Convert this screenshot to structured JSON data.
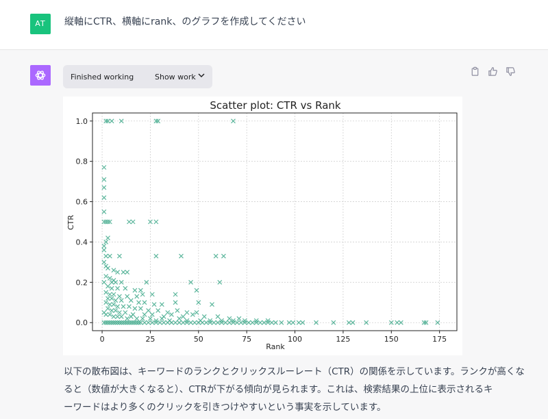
{
  "user": {
    "avatar_initials": "AT",
    "message": "縦軸にCTR、横軸にrank、のグラフを作成してください"
  },
  "assistant": {
    "avatar_icon": "openai-logo-icon",
    "status_label": "Finished working",
    "show_work_label": "Show work",
    "actions": [
      "copy-icon",
      "thumbs-up-icon",
      "thumbs-down-icon"
    ],
    "paragraph_lines": [
      "以下の散布図は、キーワードのランクとクリックスルーレート（CTR）の関係を示しています。ランクが高くな",
      "ると（数値が大きくなると）、CTRが下がる傾向が見られます。これは、検索結果の上位に表示されるキ",
      "ーワードはより多くのクリックを引きつけやすいという事実を示しています。"
    ]
  },
  "colors": {
    "user_avatar": "#19c37d",
    "bot_avatar": "#ab68ff",
    "marker": "#3fa98b"
  },
  "chart_data": {
    "type": "scatter",
    "title": "Scatter plot: CTR vs Rank",
    "xlabel": "Rank",
    "ylabel": "CTR",
    "xlim": [
      -5,
      184
    ],
    "ylim": [
      -0.04,
      1.04
    ],
    "xticks": [
      0,
      25,
      50,
      75,
      100,
      125,
      150,
      175
    ],
    "yticks": [
      0.0,
      0.2,
      0.4,
      0.6,
      0.8,
      1.0
    ],
    "grid": true,
    "marker": "x",
    "points": [
      [
        2,
        1.0
      ],
      [
        3,
        1.0
      ],
      [
        5,
        1.0
      ],
      [
        10,
        1.0
      ],
      [
        28,
        1.0
      ],
      [
        29,
        1.0
      ],
      [
        68,
        1.0
      ],
      [
        1,
        0.77
      ],
      [
        1,
        0.71
      ],
      [
        1,
        0.67
      ],
      [
        1,
        0.62
      ],
      [
        1,
        0.55
      ],
      [
        1,
        0.5
      ],
      [
        2,
        0.5
      ],
      [
        3,
        0.5
      ],
      [
        4,
        0.5
      ],
      [
        14,
        0.5
      ],
      [
        16,
        0.5
      ],
      [
        25,
        0.5
      ],
      [
        28,
        0.5
      ],
      [
        3,
        0.42
      ],
      [
        2,
        0.4
      ],
      [
        1,
        0.38
      ],
      [
        1,
        0.36
      ],
      [
        2,
        0.33
      ],
      [
        4,
        0.33
      ],
      [
        9,
        0.33
      ],
      [
        28,
        0.33
      ],
      [
        41,
        0.33
      ],
      [
        59,
        0.33
      ],
      [
        63,
        0.33
      ],
      [
        1,
        0.3
      ],
      [
        2,
        0.28
      ],
      [
        3,
        0.27
      ],
      [
        6,
        0.26
      ],
      [
        8,
        0.25
      ],
      [
        11,
        0.25
      ],
      [
        13,
        0.25
      ],
      [
        2,
        0.23
      ],
      [
        4,
        0.22
      ],
      [
        6,
        0.21
      ],
      [
        1,
        0.2
      ],
      [
        5,
        0.2
      ],
      [
        7,
        0.2
      ],
      [
        10,
        0.2
      ],
      [
        23,
        0.2
      ],
      [
        46,
        0.2
      ],
      [
        61,
        0.2
      ],
      [
        3,
        0.18
      ],
      [
        5,
        0.17
      ],
      [
        8,
        0.17
      ],
      [
        12,
        0.17
      ],
      [
        17,
        0.16
      ],
      [
        20,
        0.16
      ],
      [
        49,
        0.16
      ],
      [
        2,
        0.15
      ],
      [
        4,
        0.14
      ],
      [
        6,
        0.14
      ],
      [
        9,
        0.13
      ],
      [
        13,
        0.13
      ],
      [
        18,
        0.13
      ],
      [
        21,
        0.14
      ],
      [
        26,
        0.14
      ],
      [
        38,
        0.14
      ],
      [
        3,
        0.12
      ],
      [
        5,
        0.12
      ],
      [
        7,
        0.11
      ],
      [
        10,
        0.11
      ],
      [
        15,
        0.11
      ],
      [
        19,
        0.1
      ],
      [
        22,
        0.1
      ],
      [
        27,
        0.09
      ],
      [
        31,
        0.09
      ],
      [
        38,
        0.1
      ],
      [
        50,
        0.1
      ],
      [
        57,
        0.09
      ],
      [
        2,
        0.1
      ],
      [
        4,
        0.09
      ],
      [
        6,
        0.09
      ],
      [
        8,
        0.08
      ],
      [
        11,
        0.08
      ],
      [
        14,
        0.08
      ],
      [
        17,
        0.07
      ],
      [
        20,
        0.07
      ],
      [
        24,
        0.06
      ],
      [
        29,
        0.06
      ],
      [
        34,
        0.05
      ],
      [
        39,
        0.06
      ],
      [
        44,
        0.05
      ],
      [
        49,
        0.05
      ],
      [
        3,
        0.07
      ],
      [
        5,
        0.06
      ],
      [
        7,
        0.06
      ],
      [
        9,
        0.05
      ],
      [
        12,
        0.05
      ],
      [
        16,
        0.04
      ],
      [
        22,
        0.04
      ],
      [
        26,
        0.04
      ],
      [
        32,
        0.03
      ],
      [
        36,
        0.04
      ],
      [
        42,
        0.03
      ],
      [
        47,
        0.04
      ],
      [
        53,
        0.03
      ],
      [
        60,
        0.03
      ],
      [
        66,
        0.02
      ],
      [
        71,
        0.02
      ],
      [
        1,
        0.05
      ],
      [
        2,
        0.04
      ],
      [
        4,
        0.04
      ],
      [
        6,
        0.03
      ],
      [
        8,
        0.03
      ],
      [
        10,
        0.03
      ],
      [
        13,
        0.02
      ],
      [
        15,
        0.03
      ],
      [
        18,
        0.02
      ],
      [
        21,
        0.02
      ],
      [
        25,
        0.02
      ],
      [
        28,
        0.01
      ],
      [
        31,
        0.02
      ],
      [
        35,
        0.01
      ],
      [
        40,
        0.02
      ],
      [
        44,
        0.01
      ],
      [
        51,
        0.01
      ],
      [
        56,
        0.01
      ],
      [
        62,
        0.01
      ],
      [
        68,
        0.01
      ],
      [
        74,
        0.01
      ],
      [
        80,
        0.01
      ],
      [
        86,
        0.01
      ],
      [
        1,
        0.0
      ],
      [
        2,
        0.0
      ],
      [
        3,
        0.0
      ],
      [
        4,
        0.0
      ],
      [
        5,
        0.0
      ],
      [
        6,
        0.0
      ],
      [
        7,
        0.0
      ],
      [
        8,
        0.0
      ],
      [
        9,
        0.0
      ],
      [
        10,
        0.0
      ],
      [
        11,
        0.0
      ],
      [
        12,
        0.0
      ],
      [
        13,
        0.0
      ],
      [
        14,
        0.0
      ],
      [
        15,
        0.0
      ],
      [
        16,
        0.0
      ],
      [
        17,
        0.0
      ],
      [
        18,
        0.0
      ],
      [
        19,
        0.0
      ],
      [
        20,
        0.0
      ],
      [
        22,
        0.0
      ],
      [
        24,
        0.0
      ],
      [
        26,
        0.0
      ],
      [
        28,
        0.0
      ],
      [
        30,
        0.0
      ],
      [
        32,
        0.0
      ],
      [
        34,
        0.0
      ],
      [
        36,
        0.0
      ],
      [
        38,
        0.0
      ],
      [
        40,
        0.0
      ],
      [
        42,
        0.0
      ],
      [
        44,
        0.0
      ],
      [
        46,
        0.0
      ],
      [
        48,
        0.0
      ],
      [
        50,
        0.0
      ],
      [
        52,
        0.0
      ],
      [
        54,
        0.0
      ],
      [
        56,
        0.0
      ],
      [
        58,
        0.0
      ],
      [
        60,
        0.0
      ],
      [
        62,
        0.0
      ],
      [
        64,
        0.0
      ],
      [
        66,
        0.0
      ],
      [
        68,
        0.0
      ],
      [
        70,
        0.0
      ],
      [
        72,
        0.0
      ],
      [
        74,
        0.0
      ],
      [
        76,
        0.0
      ],
      [
        78,
        0.0
      ],
      [
        80,
        0.0
      ],
      [
        82,
        0.0
      ],
      [
        84,
        0.0
      ],
      [
        86,
        0.0
      ],
      [
        88,
        0.0
      ],
      [
        90,
        0.0
      ],
      [
        93,
        0.0
      ],
      [
        97,
        0.0
      ],
      [
        99,
        0.0
      ],
      [
        102,
        0.0
      ],
      [
        104,
        0.0
      ],
      [
        111,
        0.0
      ],
      [
        120,
        0.0
      ],
      [
        128,
        0.0
      ],
      [
        130,
        0.0
      ],
      [
        137,
        0.0
      ],
      [
        150,
        0.0
      ],
      [
        153,
        0.0
      ],
      [
        155,
        0.0
      ],
      [
        167,
        0.0
      ],
      [
        168,
        0.0
      ],
      [
        174,
        0.0
      ]
    ]
  }
}
